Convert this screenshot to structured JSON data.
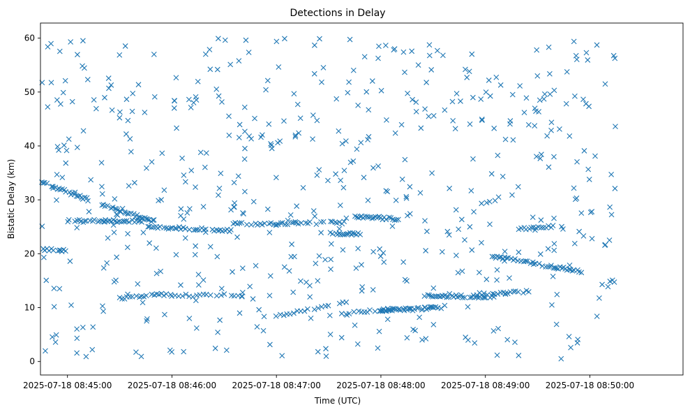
{
  "chart_data": {
    "type": "scatter",
    "title": "Detections in Delay",
    "xlabel": "Time (UTC)",
    "ylabel": "Bistatic Delay (km)",
    "marker": "x",
    "color": "#1f77b4",
    "xlim_seconds": [
      -15.5,
      353.5
    ],
    "ylim": [
      -2.5,
      62.8
    ],
    "x_ticks": [
      {
        "t": 0,
        "label": "2025-07-18 08:45:00"
      },
      {
        "t": 60,
        "label": "2025-07-18 08:46:00"
      },
      {
        "t": 120,
        "label": "2025-07-18 08:47:00"
      },
      {
        "t": 180,
        "label": "2025-07-18 08:48:00"
      },
      {
        "t": 240,
        "label": "2025-07-18 08:49:00"
      },
      {
        "t": 300,
        "label": "2025-07-18 08:50:00"
      }
    ],
    "y_ticks": [
      0,
      10,
      20,
      30,
      40,
      50,
      60
    ],
    "time_origin": "2025-07-18 08:45:00",
    "time_range_seconds": [
      -15,
      315
    ],
    "delay_range_km": [
      0.5,
      60
    ],
    "tracks": [
      {
        "t0": -15,
        "t1": 12,
        "d0": 33.2,
        "d1": 30.0,
        "step": 1.0
      },
      {
        "t0": 20,
        "t1": 50,
        "d0": 29.0,
        "d1": 26.0,
        "step": 0.9
      },
      {
        "t0": 46,
        "t1": 95,
        "d0": 25.0,
        "d1": 24.3,
        "step": 1.2
      },
      {
        "t0": 0,
        "t1": 45,
        "d0": 26.1,
        "d1": 26.0,
        "step": 1.1
      },
      {
        "t0": 95,
        "t1": 160,
        "d0": 25.5,
        "d1": 25.8,
        "step": 1.3
      },
      {
        "t0": 150,
        "t1": 168,
        "d0": 23.8,
        "d1": 23.6,
        "step": 1.0
      },
      {
        "t0": -14,
        "t1": 0,
        "d0": 20.8,
        "d1": 20.5,
        "step": 1.2
      },
      {
        "t0": 163,
        "t1": 190,
        "d0": 27.0,
        "d1": 26.4,
        "step": 1.0
      },
      {
        "t0": 160,
        "t1": 190,
        "d0": 9.0,
        "d1": 9.8,
        "step": 1.5
      },
      {
        "t0": 180,
        "t1": 215,
        "d0": 9.5,
        "d1": 10.0,
        "step": 0.8
      },
      {
        "t0": 205,
        "t1": 245,
        "d0": 12.2,
        "d1": 12.0,
        "step": 1.0
      },
      {
        "t0": 244,
        "t1": 295,
        "d0": 19.5,
        "d1": 16.7,
        "step": 1.0
      },
      {
        "t0": 235,
        "t1": 265,
        "d0": 12.5,
        "d1": 13.0,
        "step": 1.5
      },
      {
        "t0": 30,
        "t1": 60,
        "d0": 11.8,
        "d1": 12.5,
        "step": 1.4
      },
      {
        "t0": 258,
        "t1": 280,
        "d0": 24.5,
        "d1": 25.2,
        "step": 1.4
      },
      {
        "t0": 120,
        "t1": 160,
        "d0": 8.5,
        "d1": 11.0,
        "step": 2.0
      },
      {
        "t0": 60,
        "t1": 100,
        "d0": 12.2,
        "d1": 12.3,
        "step": 2.0
      }
    ],
    "noise": {
      "count": 560,
      "seed": 20250718
    }
  }
}
